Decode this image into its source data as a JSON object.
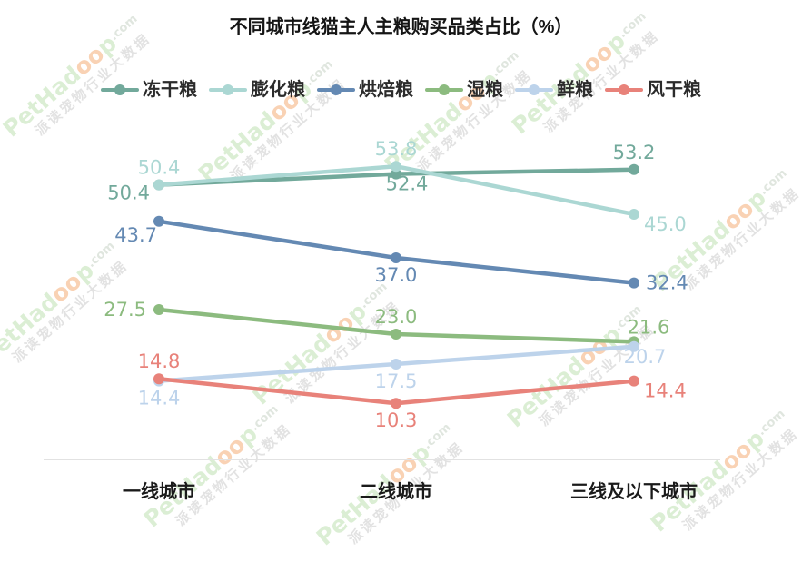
{
  "title": "不同城市线猫主人主粮购买品类占比（%）",
  "watermark": {
    "brand_prefix": "PetHad",
    "brand_paws": "oo",
    "brand_suffix": "p",
    "domain": ".com",
    "tagline": "派读宠物行业大数据"
  },
  "chart_data": {
    "type": "line",
    "title": "不同城市线猫主人主粮购买品类占比（%）",
    "categories": [
      "一线城市",
      "二线城市",
      "三线及以下城市"
    ],
    "series": [
      {
        "name": "冻干粮",
        "color": "#72A99B",
        "values": [
          50.4,
          52.4,
          53.2
        ],
        "label_pos": [
          "left-low",
          "below-mid",
          "above"
        ]
      },
      {
        "name": "膨化粮",
        "color": "#ABD7D3",
        "values": [
          50.4,
          53.8,
          45.0
        ],
        "label_pos": [
          "above",
          "above",
          "below-right"
        ]
      },
      {
        "name": "烘焙粮",
        "color": "#6489B3",
        "values": [
          43.7,
          37.0,
          32.4
        ],
        "label_pos": [
          "below-left",
          "below",
          "right"
        ]
      },
      {
        "name": "湿粮",
        "color": "#8CBB7F",
        "values": [
          27.5,
          23.0,
          21.6
        ],
        "label_pos": [
          "left",
          "above",
          "above-right"
        ]
      },
      {
        "name": "鲜粮",
        "color": "#BDD3EB",
        "values": [
          14.4,
          17.5,
          20.7
        ],
        "label_pos": [
          "below",
          "below",
          "below-mid"
        ]
      },
      {
        "name": "风干粮",
        "color": "#E8827A",
        "values": [
          14.8,
          10.3,
          14.4
        ],
        "label_pos": [
          "above",
          "below",
          "below-right"
        ]
      }
    ],
    "ylim": [
      0,
      60
    ],
    "grid": false,
    "y_axis_shown": false,
    "legend_position": "top",
    "value_labels_shown": true,
    "value_decimals": 1
  }
}
